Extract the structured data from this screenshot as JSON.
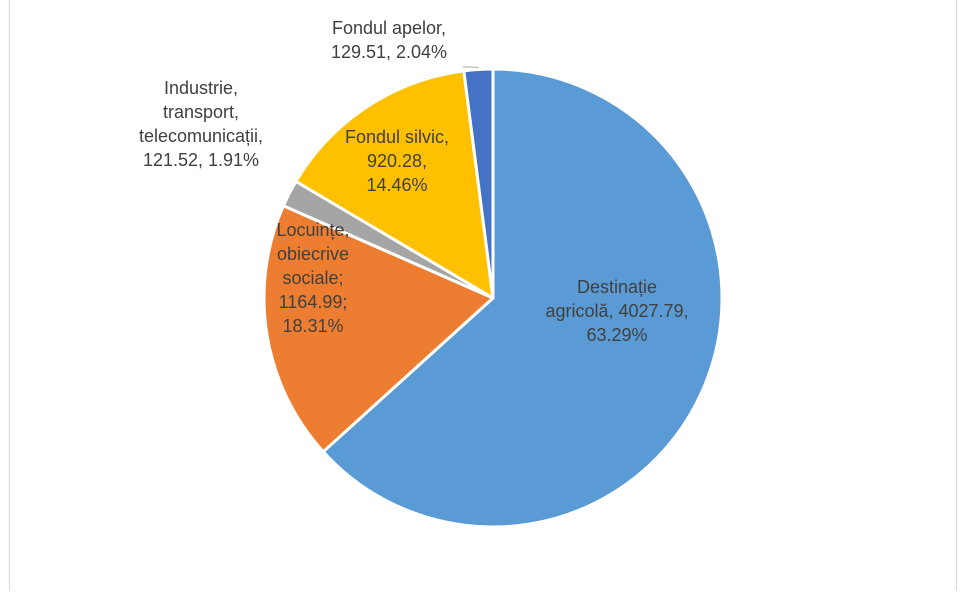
{
  "chart_data": {
    "type": "pie",
    "categories": [
      "Destinație agricolă",
      "Locuințe, obiecrive sociale",
      "Industrie, transport, telecomunicații",
      "Fondul silvic",
      "Fondul apelor"
    ],
    "values": [
      4027.79,
      1164.99,
      121.52,
      920.28,
      129.51
    ],
    "percents": [
      "63.29%",
      "18.31%",
      "1.91%",
      "14.46%",
      "2.04%"
    ],
    "colors": [
      "#5b9bd5",
      "#ed7d31",
      "#a5a5a5",
      "#ffc000",
      "#4472c4"
    ],
    "label_colors": [
      "#404040",
      "#404040",
      "#404040",
      "#404040",
      "#404040"
    ],
    "labels": [
      [
        "Destinație",
        "agricolă, 4027.79,",
        "63.29%"
      ],
      [
        "Locuințe,",
        "obiecrive",
        "sociale;",
        "1164.99;",
        "18.31%"
      ],
      [
        "Industrie,",
        "transport,",
        "telecomunicații,",
        "121.52, 1.91%"
      ],
      [
        "Fondul silvic,",
        "920.28,",
        "14.46%"
      ],
      [
        "Fondul apelor,",
        "129.51, 2.04%"
      ]
    ],
    "start_angle_deg": 0,
    "direction": "clockwise"
  }
}
